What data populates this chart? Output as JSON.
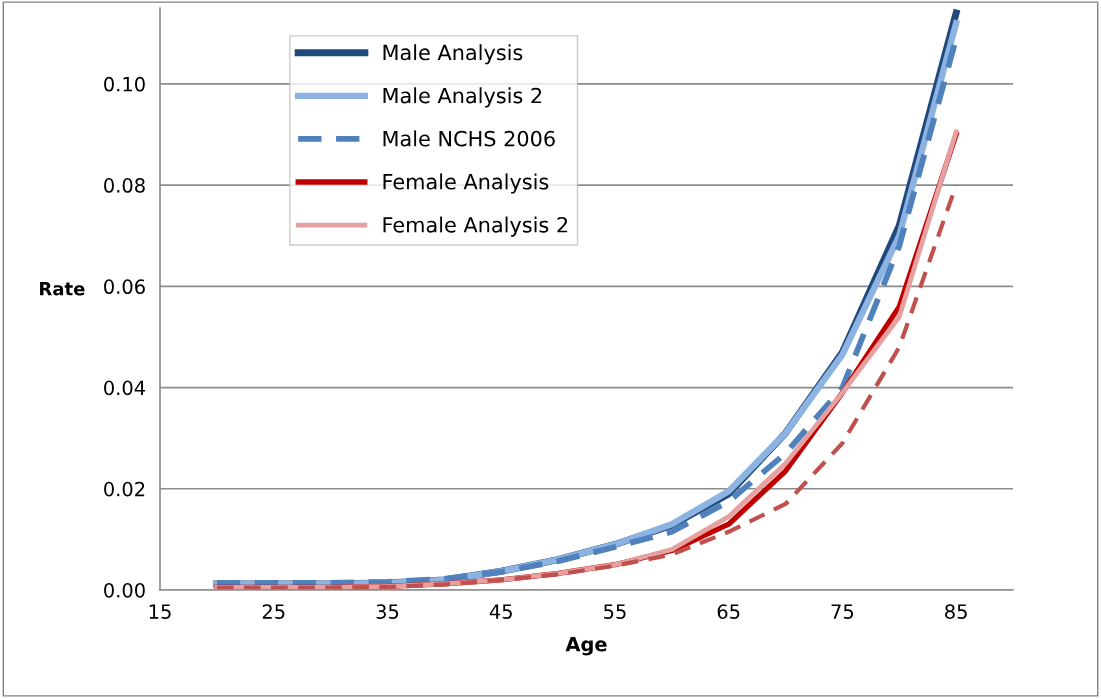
{
  "chart_data": {
    "type": "line",
    "xlabel": "Age",
    "ylabel": "Rate",
    "x": [
      20,
      25,
      30,
      35,
      40,
      45,
      50,
      55,
      60,
      65,
      70,
      75,
      80,
      85
    ],
    "series": [
      {
        "name": "Male Analysis",
        "color": "#1f497d",
        "line_style": "solid",
        "values": [
          0.0012,
          0.0012,
          0.0012,
          0.0014,
          0.002,
          0.0037,
          0.006,
          0.009,
          0.0128,
          0.019,
          0.031,
          0.047,
          0.072,
          0.114
        ]
      },
      {
        "name": "Male Analysis 2",
        "color": "#8db3e2",
        "line_style": "solid",
        "values": [
          0.0012,
          0.0012,
          0.0012,
          0.0014,
          0.002,
          0.0037,
          0.006,
          0.009,
          0.013,
          0.0195,
          0.031,
          0.0465,
          0.07,
          0.112
        ]
      },
      {
        "name": "Male NCHS 2006",
        "color": "#4f81bd",
        "line_style": "dashed",
        "values": [
          0.0014,
          0.0014,
          0.0014,
          0.0016,
          0.0022,
          0.0036,
          0.0057,
          0.0085,
          0.0115,
          0.0175,
          0.027,
          0.04,
          0.068,
          0.109
        ]
      },
      {
        "name": "Female Analysis",
        "color": "#c00000",
        "line_style": "solid",
        "values": [
          0.0005,
          0.0005,
          0.0005,
          0.0007,
          0.0012,
          0.002,
          0.0033,
          0.005,
          0.0078,
          0.013,
          0.0235,
          0.039,
          0.056,
          0.09
        ]
      },
      {
        "name": "Female Analysis 2",
        "color": "#e6a0a0",
        "line_style": "solid",
        "values": [
          0.0005,
          0.0005,
          0.0005,
          0.0007,
          0.0012,
          0.002,
          0.0033,
          0.005,
          0.008,
          0.0145,
          0.025,
          0.039,
          0.054,
          0.0905
        ]
      },
      {
        "color": "#c0504d",
        "line_style": "dashed",
        "values": [
          0.0005,
          0.0005,
          0.0005,
          0.0006,
          0.0011,
          0.002,
          0.0031,
          0.0048,
          0.007,
          0.0115,
          0.017,
          0.029,
          0.048,
          0.08
        ]
      }
    ],
    "xlim": [
      15,
      90
    ],
    "xticks": [
      15,
      25,
      35,
      45,
      55,
      65,
      75,
      85
    ],
    "ylim": [
      0,
      0.115
    ],
    "yticks": [
      {
        "value": 0,
        "label": "0.00"
      },
      {
        "value": 0.02,
        "label": "0.02"
      },
      {
        "value": 0.04,
        "label": "0.04"
      },
      {
        "value": 0.06,
        "label": "0.06"
      },
      {
        "value": 0.08,
        "label": "0.08"
      },
      {
        "value": 0.1,
        "label": "0.10"
      }
    ],
    "grid": "y",
    "legend": "top left",
    "marker": "none"
  }
}
